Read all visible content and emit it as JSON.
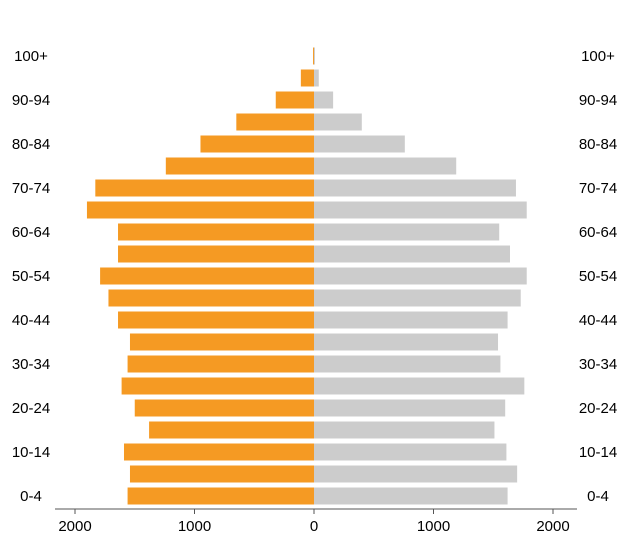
{
  "chart_data": {
    "type": "bar",
    "orientation": "horizontal",
    "title": "",
    "xlabel": "",
    "ylabel": "",
    "categories": [
      "0-4",
      "5-9",
      "10-14",
      "15-19",
      "20-24",
      "25-29",
      "30-34",
      "35-39",
      "40-44",
      "45-49",
      "50-54",
      "55-59",
      "60-64",
      "65-69",
      "70-74",
      "75-79",
      "80-84",
      "85-89",
      "90-94",
      "95-99",
      "100+"
    ],
    "series": [
      {
        "values": [
          1560,
          1540,
          1590,
          1380,
          1500,
          1610,
          1560,
          1540,
          1640,
          1720,
          1790,
          1640,
          1640,
          1900,
          1830,
          1240,
          950,
          650,
          320,
          110,
          8
        ],
        "color": "#f59a23",
        "side": "left"
      },
      {
        "values": [
          1620,
          1700,
          1610,
          1510,
          1600,
          1760,
          1560,
          1540,
          1620,
          1730,
          1780,
          1640,
          1550,
          1780,
          1690,
          1190,
          760,
          400,
          160,
          40,
          8
        ],
        "color": "#cccccc",
        "side": "right"
      }
    ],
    "shown_labels": [
      "0-4",
      "10-14",
      "20-24",
      "30-34",
      "40-44",
      "50-54",
      "60-64",
      "70-74",
      "80-84",
      "90-94",
      "100+"
    ],
    "x_ticks": [
      "2000",
      "1000",
      "0",
      "1000",
      "2000"
    ],
    "xlim": [
      -2000,
      2000
    ],
    "grid": false,
    "legend": "none"
  }
}
